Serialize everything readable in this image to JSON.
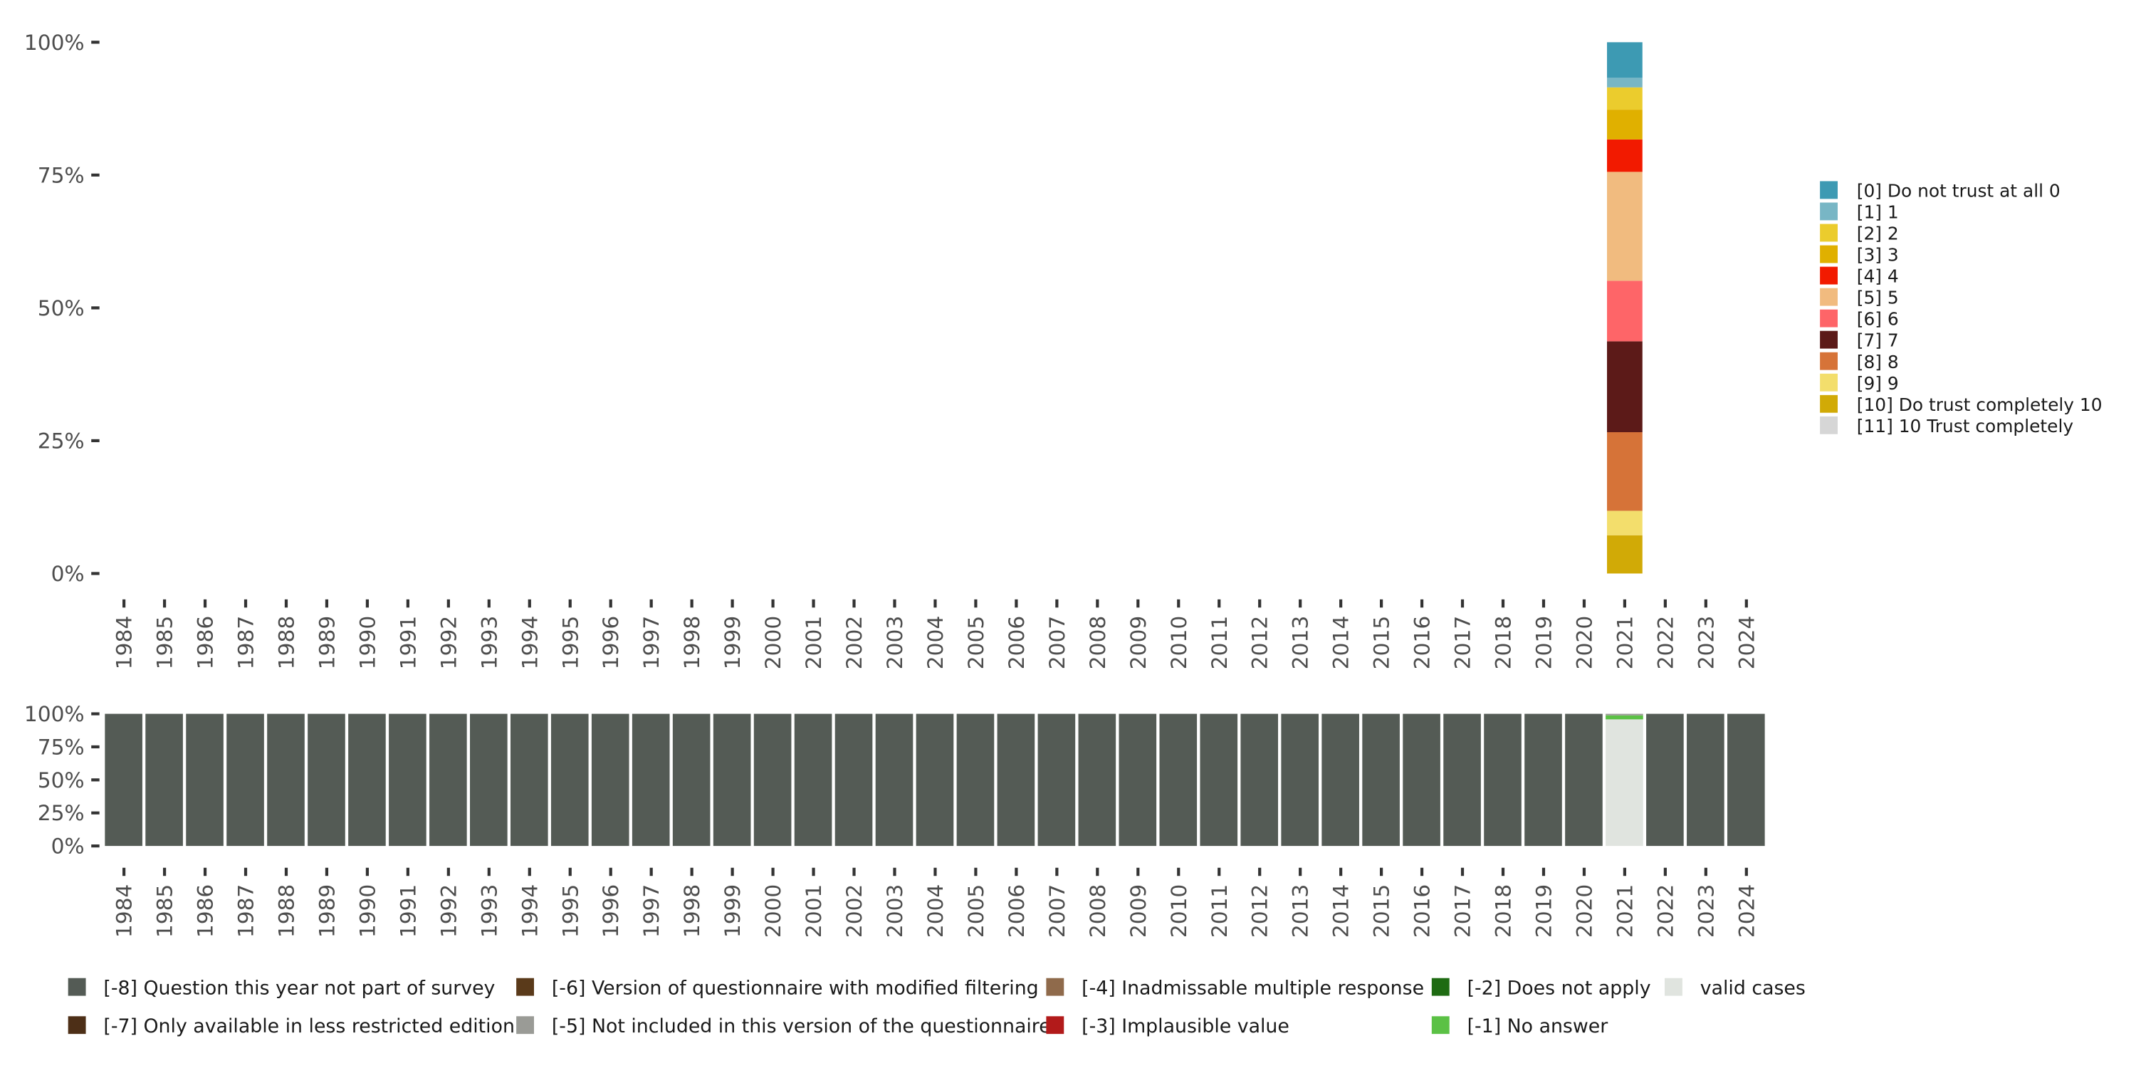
{
  "chart_data": [
    {
      "type": "bar",
      "stacked": true,
      "title": "",
      "xlabel": "",
      "ylabel": "",
      "ylim": [
        0,
        100
      ],
      "y_ticks": [
        "0%",
        "25%",
        "50%",
        "75%",
        "100%"
      ],
      "categories": [
        "1984",
        "1985",
        "1986",
        "1987",
        "1988",
        "1989",
        "1990",
        "1991",
        "1992",
        "1993",
        "1994",
        "1995",
        "1996",
        "1997",
        "1998",
        "1999",
        "2000",
        "2001",
        "2002",
        "2003",
        "2004",
        "2005",
        "2006",
        "2007",
        "2008",
        "2009",
        "2010",
        "2011",
        "2012",
        "2013",
        "2014",
        "2015",
        "2016",
        "2017",
        "2018",
        "2019",
        "2020",
        "2021",
        "2022",
        "2023",
        "2024"
      ],
      "legend_position": "right",
      "series": [
        {
          "name": "[0] Do not trust at all 0",
          "color": "#3d9ab3",
          "data": {
            "2021": 6.7
          }
        },
        {
          "name": "[1] 1",
          "color": "#78b6c5",
          "data": {
            "2021": 1.8
          }
        },
        {
          "name": "[2] 2",
          "color": "#ebcc2d",
          "data": {
            "2021": 4.2
          }
        },
        {
          "name": "[3] 3",
          "color": "#e0b000",
          "data": {
            "2021": 5.6
          }
        },
        {
          "name": "[4] 4",
          "color": "#f21a00",
          "data": {
            "2021": 6.1
          }
        },
        {
          "name": "[5] 5",
          "color": "#f1bb7f",
          "data": {
            "2021": 20.5
          }
        },
        {
          "name": "[6] 6",
          "color": "#fe6568",
          "data": {
            "2021": 11.4
          }
        },
        {
          "name": "[7] 7",
          "color": "#5c1a18",
          "data": {
            "2021": 17.1
          }
        },
        {
          "name": "[8] 8",
          "color": "#d67338",
          "data": {
            "2021": 14.8
          }
        },
        {
          "name": "[9] 9",
          "color": "#f3de6c",
          "data": {
            "2021": 4.6
          }
        },
        {
          "name": "[10] Do trust completely 10",
          "color": "#d1aa06",
          "data": {
            "2021": 7.2
          }
        },
        {
          "name": "[11] 10 Trust completely",
          "color": "#d6d6d6",
          "data": {
            "2021": 0
          }
        }
      ]
    },
    {
      "type": "bar",
      "stacked": true,
      "title": "",
      "xlabel": "",
      "ylabel": "",
      "ylim": [
        0,
        100
      ],
      "y_ticks": [
        "0%",
        "25%",
        "50%",
        "75%",
        "100%"
      ],
      "categories": [
        "1984",
        "1985",
        "1986",
        "1987",
        "1988",
        "1989",
        "1990",
        "1991",
        "1992",
        "1993",
        "1994",
        "1995",
        "1996",
        "1997",
        "1998",
        "1999",
        "2000",
        "2001",
        "2002",
        "2003",
        "2004",
        "2005",
        "2006",
        "2007",
        "2008",
        "2009",
        "2010",
        "2011",
        "2012",
        "2013",
        "2014",
        "2015",
        "2016",
        "2017",
        "2018",
        "2019",
        "2020",
        "2021",
        "2022",
        "2023",
        "2024"
      ],
      "legend_position": "bottom",
      "series": [
        {
          "name": "[-8] Question this year not part of survey",
          "color": "#545b55",
          "default": 100,
          "data": {
            "2021": 0
          }
        },
        {
          "name": "[-7] Only available in less restricted edition",
          "color": "#4d2f17",
          "default": 0,
          "data": {}
        },
        {
          "name": "[-6] Version of questionnaire with modified filtering",
          "color": "#5a3a1a",
          "default": 0,
          "data": {}
        },
        {
          "name": "[-5] Not included in this version of the questionnaire",
          "color": "#9a9b96",
          "default": 0,
          "data": {
            "2021": 1.2
          }
        },
        {
          "name": "[-4] Inadmissable multiple response",
          "color": "#8f6a4b",
          "default": 0,
          "data": {}
        },
        {
          "name": "[-3] Implausible value",
          "color": "#b21a1a",
          "default": 0,
          "data": {}
        },
        {
          "name": "[-2] Does not apply",
          "color": "#1e6b12",
          "default": 0,
          "data": {}
        },
        {
          "name": "[-1] No answer",
          "color": "#5bc145",
          "default": 0,
          "data": {
            "2021": 3.0
          }
        },
        {
          "name": "valid cases",
          "color": "#e0e4df",
          "default": 0,
          "data": {
            "2021": 95.8
          }
        }
      ]
    }
  ]
}
